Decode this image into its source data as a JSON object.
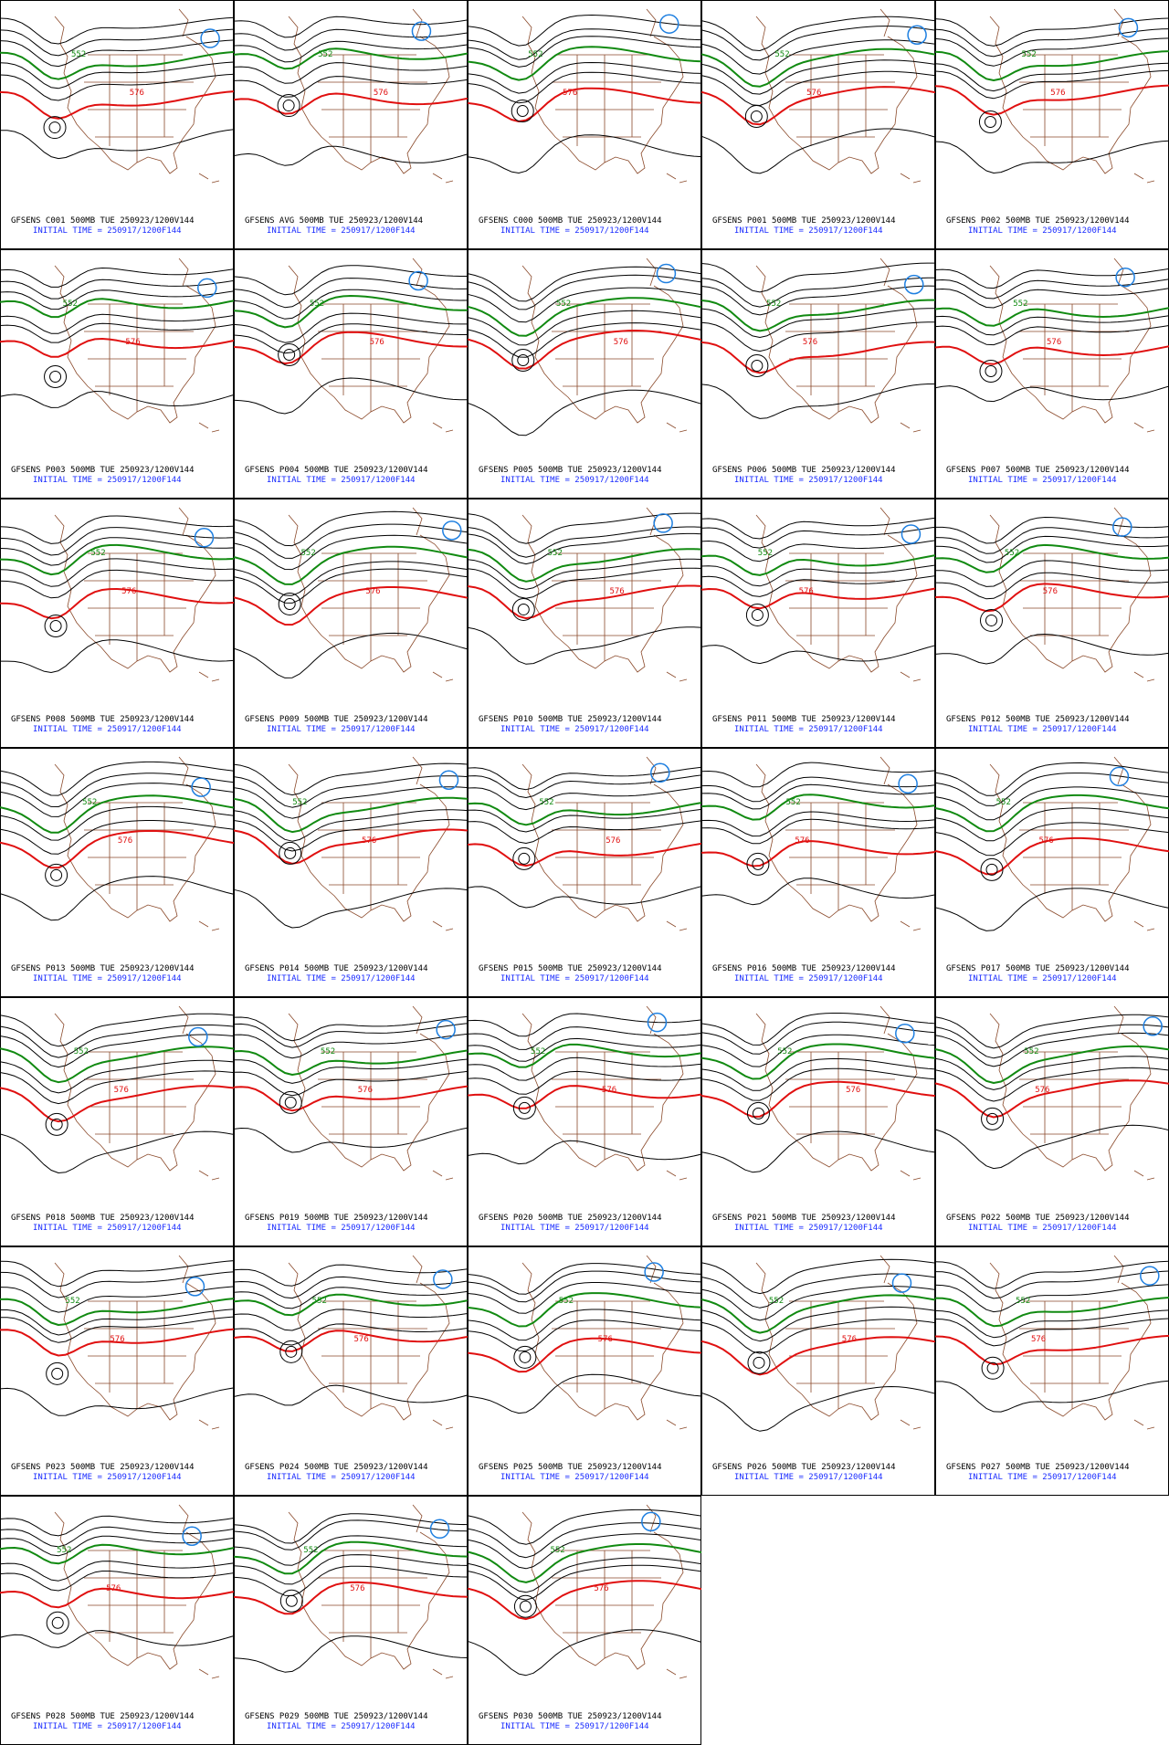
{
  "panels": [
    {
      "title": "GFSENS C001 500MB TUE 250923/1200V144",
      "init": "INITIAL TIME = 250917/1200F144",
      "labels": [
        "552",
        "576"
      ]
    },
    {
      "title": "GFSENS AVG 500MB TUE 250923/1200V144",
      "init": "INITIAL TIME = 250917/1200F144",
      "labels": [
        "552",
        "576"
      ]
    },
    {
      "title": "GFSENS C000 500MB TUE 250923/1200V144",
      "init": "INITIAL TIME = 250917/1200F144",
      "labels": [
        "552",
        "576"
      ]
    },
    {
      "title": "GFSENS P001 500MB TUE 250923/1200V144",
      "init": "INITIAL TIME = 250917/1200F144",
      "labels": [
        "552",
        "576"
      ]
    },
    {
      "title": "GFSENS P002 500MB TUE 250923/1200V144",
      "init": "INITIAL TIME = 250917/1200F144",
      "labels": [
        "552",
        "576"
      ]
    },
    {
      "title": "GFSENS P003 500MB TUE 250923/1200V144",
      "init": "INITIAL TIME = 250917/1200F144",
      "labels": [
        "552",
        "576"
      ]
    },
    {
      "title": "GFSENS P004 500MB TUE 250923/1200V144",
      "init": "INITIAL TIME = 250917/1200F144",
      "labels": [
        "552",
        "576"
      ]
    },
    {
      "title": "GFSENS P005 500MB TUE 250923/1200V144",
      "init": "INITIAL TIME = 250917/1200F144",
      "labels": [
        "552",
        "576"
      ]
    },
    {
      "title": "GFSENS P006 500MB TUE 250923/1200V144",
      "init": "INITIAL TIME = 250917/1200F144",
      "labels": [
        "552",
        "576"
      ]
    },
    {
      "title": "GFSENS P007 500MB TUE 250923/1200V144",
      "init": "INITIAL TIME = 250917/1200F144",
      "labels": [
        "552",
        "576"
      ]
    },
    {
      "title": "GFSENS P008 500MB TUE 250923/1200V144",
      "init": "INITIAL TIME = 250917/1200F144",
      "labels": [
        "552",
        "576"
      ]
    },
    {
      "title": "GFSENS P009 500MB TUE 250923/1200V144",
      "init": "INITIAL TIME = 250917/1200F144",
      "labels": [
        "552",
        "576"
      ]
    },
    {
      "title": "GFSENS P010 500MB TUE 250923/1200V144",
      "init": "INITIAL TIME = 250917/1200F144",
      "labels": [
        "552",
        "576"
      ]
    },
    {
      "title": "GFSENS P011 500MB TUE 250923/1200V144",
      "init": "INITIAL TIME = 250917/1200F144",
      "labels": [
        "552",
        "576"
      ]
    },
    {
      "title": "GFSENS P012 500MB TUE 250923/1200V144",
      "init": "INITIAL TIME = 250917/1200F144",
      "labels": [
        "552",
        "576"
      ]
    },
    {
      "title": "GFSENS P013 500MB TUE 250923/1200V144",
      "init": "INITIAL TIME = 250917/1200F144",
      "labels": [
        "552",
        "576"
      ]
    },
    {
      "title": "GFSENS P014 500MB TUE 250923/1200V144",
      "init": "INITIAL TIME = 250917/1200F144",
      "labels": [
        "552",
        "576"
      ]
    },
    {
      "title": "GFSENS P015 500MB TUE 250923/1200V144",
      "init": "INITIAL TIME = 250917/1200F144",
      "labels": [
        "552",
        "576"
      ]
    },
    {
      "title": "GFSENS P016 500MB TUE 250923/1200V144",
      "init": "INITIAL TIME = 250917/1200F144",
      "labels": [
        "552",
        "576"
      ]
    },
    {
      "title": "GFSENS P017 500MB TUE 250923/1200V144",
      "init": "INITIAL TIME = 250917/1200F144",
      "labels": [
        "552",
        "576"
      ]
    },
    {
      "title": "GFSENS P018 500MB TUE 250923/1200V144",
      "init": "INITIAL TIME = 250917/1200F144",
      "labels": [
        "552",
        "576"
      ]
    },
    {
      "title": "GFSENS P019 500MB TUE 250923/1200V144",
      "init": "INITIAL TIME = 250917/1200F144",
      "labels": [
        "552",
        "576"
      ]
    },
    {
      "title": "GFSENS P020 500MB TUE 250923/1200V144",
      "init": "INITIAL TIME = 250917/1200F144",
      "labels": [
        "552",
        "576"
      ]
    },
    {
      "title": "GFSENS P021 500MB TUE 250923/1200V144",
      "init": "INITIAL TIME = 250917/1200F144",
      "labels": [
        "552",
        "576"
      ]
    },
    {
      "title": "GFSENS P022 500MB TUE 250923/1200V144",
      "init": "INITIAL TIME = 250917/1200F144",
      "labels": [
        "552",
        "576"
      ]
    },
    {
      "title": "GFSENS P023 500MB TUE 250923/1200V144",
      "init": "INITIAL TIME = 250917/1200F144",
      "labels": [
        "552",
        "576"
      ]
    },
    {
      "title": "GFSENS P024 500MB TUE 250923/1200V144",
      "init": "INITIAL TIME = 250917/1200F144",
      "labels": [
        "552",
        "576"
      ]
    },
    {
      "title": "GFSENS P025 500MB TUE 250923/1200V144",
      "init": "INITIAL TIME = 250917/1200F144",
      "labels": [
        "552",
        "576"
      ]
    },
    {
      "title": "GFSENS P026 500MB TUE 250923/1200V144",
      "init": "INITIAL TIME = 250917/1200F144",
      "labels": [
        "552",
        "576"
      ]
    },
    {
      "title": "GFSENS P027 500MB TUE 250923/1200V144",
      "init": "INITIAL TIME = 250917/1200F144",
      "labels": [
        "552",
        "576"
      ]
    },
    {
      "title": "GFSENS P028 500MB TUE 250923/1200V144",
      "init": "INITIAL TIME = 250917/1200F144",
      "labels": [
        "552",
        "576"
      ]
    },
    {
      "title": "GFSENS P029 500MB TUE 250923/1200V144",
      "init": "INITIAL TIME = 250917/1200F144",
      "labels": [
        "552",
        "576"
      ]
    },
    {
      "title": "GFSENS P030 500MB TUE 250923/1200V144",
      "init": "INITIAL TIME = 250917/1200F144",
      "labels": [
        "552",
        "576"
      ]
    }
  ]
}
